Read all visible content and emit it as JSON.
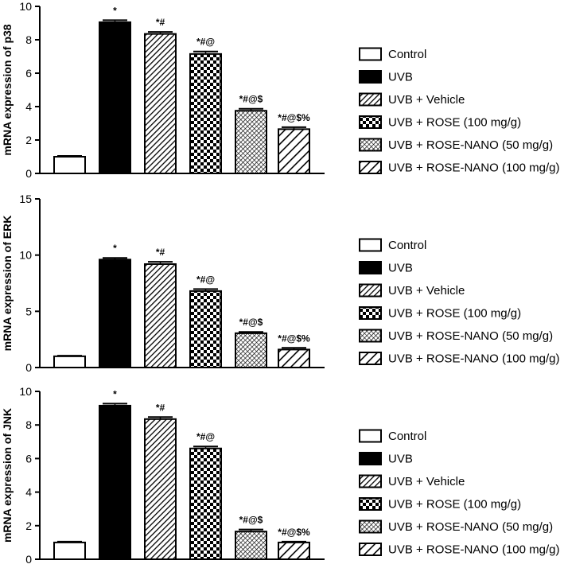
{
  "chart_data": [
    {
      "type": "bar",
      "ylabel": "mRNA expression of p38",
      "ylim": [
        0,
        10
      ],
      "yticks": [
        0,
        2,
        4,
        6,
        8,
        10
      ],
      "categories": [
        "Control",
        "UVB",
        "UVB + Vehicle",
        "UVB + ROSE (100 mg/g)",
        "UVB + ROSE-NANO (50 mg/g)",
        "UVB + ROSE-NANO (100 mg/g)"
      ],
      "values": [
        1.0,
        9.05,
        8.35,
        7.15,
        3.75,
        2.65
      ],
      "errors": [
        0.05,
        0.12,
        0.12,
        0.15,
        0.12,
        0.12
      ],
      "significance": [
        "",
        "*",
        "*#",
        "*#@",
        "*#@$",
        "*#@$%"
      ],
      "legend": [
        "Control",
        "UVB",
        "UVB + Vehicle",
        "UVB + ROSE (100 mg/g)",
        "UVB + ROSE-NANO (50 mg/g)",
        "UVB + ROSE-NANO (100 mg/g)"
      ]
    },
    {
      "type": "bar",
      "ylabel": "mRNA expression of ERK",
      "ylim": [
        0,
        15
      ],
      "yticks": [
        0,
        5,
        10,
        15
      ],
      "categories": [
        "Control",
        "UVB",
        "UVB + Vehicle",
        "UVB + ROSE (100 mg/g)",
        "UVB + ROSE-NANO (50 mg/g)",
        "UVB + ROSE-NANO (100 mg/g)"
      ],
      "values": [
        1.0,
        9.6,
        9.2,
        6.8,
        3.05,
        1.6
      ],
      "errors": [
        0.05,
        0.15,
        0.2,
        0.18,
        0.12,
        0.15
      ],
      "significance": [
        "",
        "*",
        "*#",
        "*#@",
        "*#@$",
        "*#@$%"
      ],
      "legend": [
        "Control",
        "UVB",
        "UVB + Vehicle",
        "UVB + ROSE (100 mg/g)",
        "UVB + ROSE-NANO (50 mg/g)",
        "UVB + ROSE-NANO (100 mg/g)"
      ]
    },
    {
      "type": "bar",
      "ylabel": "mRNA expression of JNK",
      "ylim": [
        0,
        10
      ],
      "yticks": [
        0,
        2,
        4,
        6,
        8,
        10
      ],
      "categories": [
        "Control",
        "UVB",
        "UVB + Vehicle",
        "UVB + ROSE (100 mg/g)",
        "UVB + ROSE-NANO (50 mg/g)",
        "UVB + ROSE-NANO (100 mg/g)"
      ],
      "values": [
        1.0,
        9.15,
        8.35,
        6.6,
        1.65,
        1.0
      ],
      "errors": [
        0.05,
        0.12,
        0.12,
        0.12,
        0.12,
        0.05
      ],
      "significance": [
        "",
        "*",
        "*#",
        "*#@",
        "*#@$",
        "*#@$%"
      ],
      "legend": [
        "Control",
        "UVB",
        "UVB + Vehicle",
        "UVB + ROSE (100 mg/g)",
        "UVB + ROSE-NANO (50 mg/g)",
        "UVB + ROSE-NANO (100 mg/g)"
      ]
    }
  ]
}
